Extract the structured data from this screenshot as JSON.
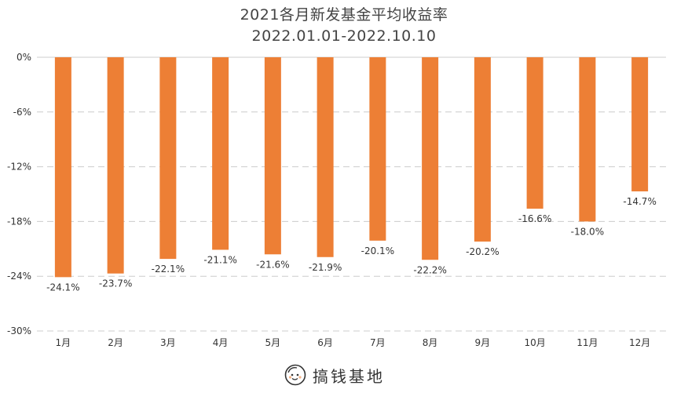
{
  "chart_data": {
    "type": "bar",
    "title": "2021各月新发基金平均收益率",
    "subtitle": "2022.01.01-2022.10.10",
    "xlabel": "",
    "ylabel": "",
    "categories": [
      "1月",
      "2月",
      "3月",
      "4月",
      "5月",
      "6月",
      "7月",
      "8月",
      "9月",
      "10月",
      "11月",
      "12月"
    ],
    "values": [
      -24.1,
      -23.7,
      -22.1,
      -21.1,
      -21.6,
      -21.9,
      -20.1,
      -22.2,
      -20.2,
      -16.6,
      -18.0,
      -14.7
    ],
    "value_labels": [
      "-24.1%",
      "-23.7%",
      "-22.1%",
      "-21.1%",
      "-21.6%",
      "-21.9%",
      "-20.1%",
      "-22.2%",
      "-20.2%",
      "-16.6%",
      "-18.0%",
      "-14.7%"
    ],
    "ylim": [
      -30,
      0
    ],
    "yticks": [
      0,
      -6,
      -12,
      -18,
      -24,
      -30
    ],
    "ytick_labels": [
      "0%",
      "-6%",
      "-12%",
      "-18%",
      "-24%",
      "-30%"
    ],
    "grid": true,
    "grid_style": "dashed",
    "legend": "none",
    "bar_color": "#ED7F35",
    "grid_color": "#CCCCCC",
    "text_color": "#333333"
  },
  "brand": {
    "name": "搞钱基地",
    "logo_icon": "smiling-face-logo-icon"
  }
}
